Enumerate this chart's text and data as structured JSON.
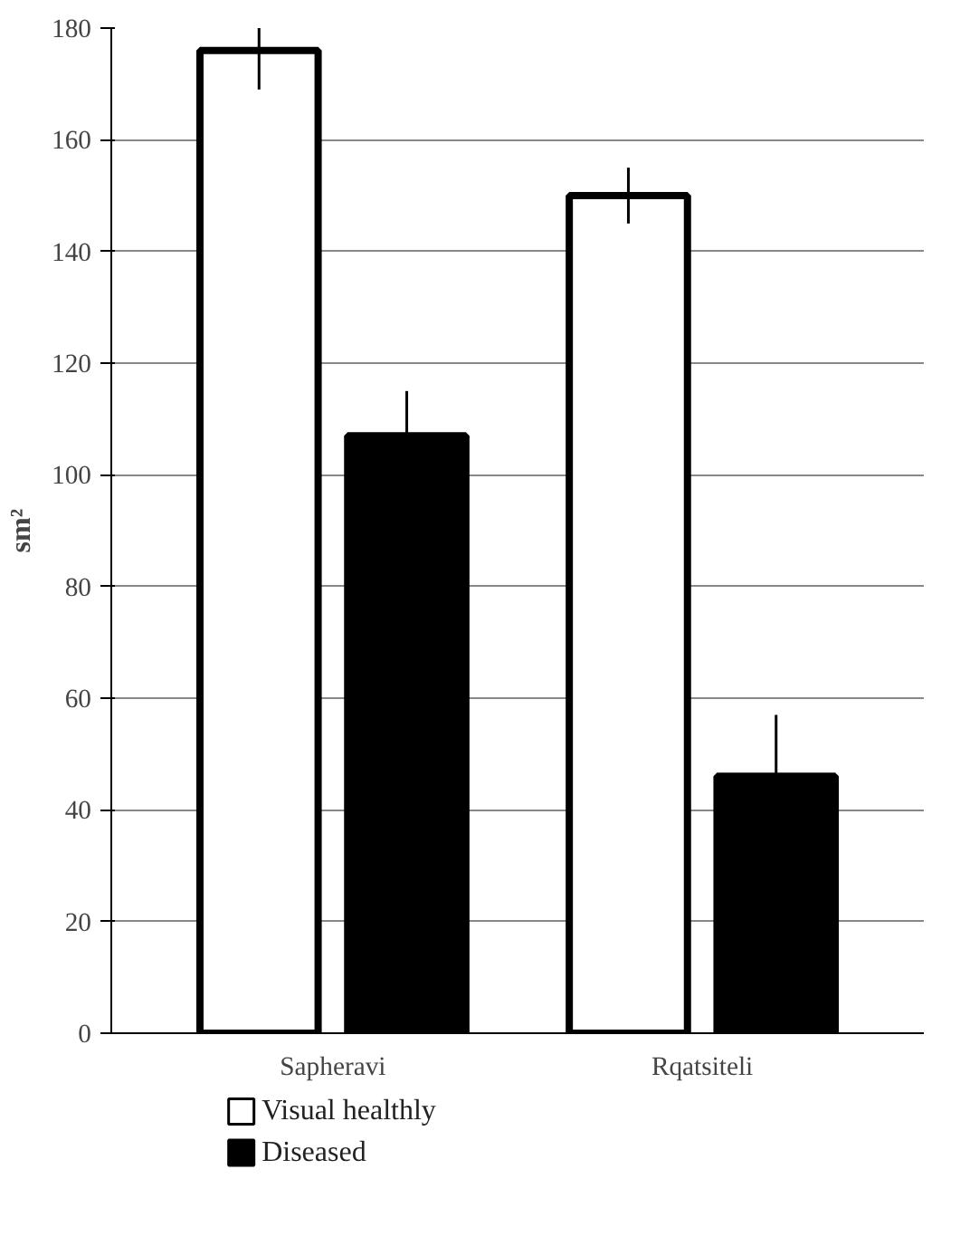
{
  "chart_data": {
    "type": "bar",
    "ylabel": "sm²",
    "categories": [
      "Sapheravi",
      "Rqatsiteli"
    ],
    "series": [
      {
        "name": "Visual healthly",
        "color": "#ffffff",
        "values": [
          176,
          150
        ],
        "errors": [
          7,
          5
        ]
      },
      {
        "name": "Diseased",
        "color": "#000000",
        "values": [
          107,
          46
        ],
        "errors": [
          8,
          11
        ]
      }
    ],
    "ylim": [
      0,
      180
    ],
    "yticks": [
      0,
      20,
      40,
      60,
      80,
      100,
      120,
      140,
      160,
      180
    ],
    "grid": "y",
    "legend": "bottom"
  }
}
